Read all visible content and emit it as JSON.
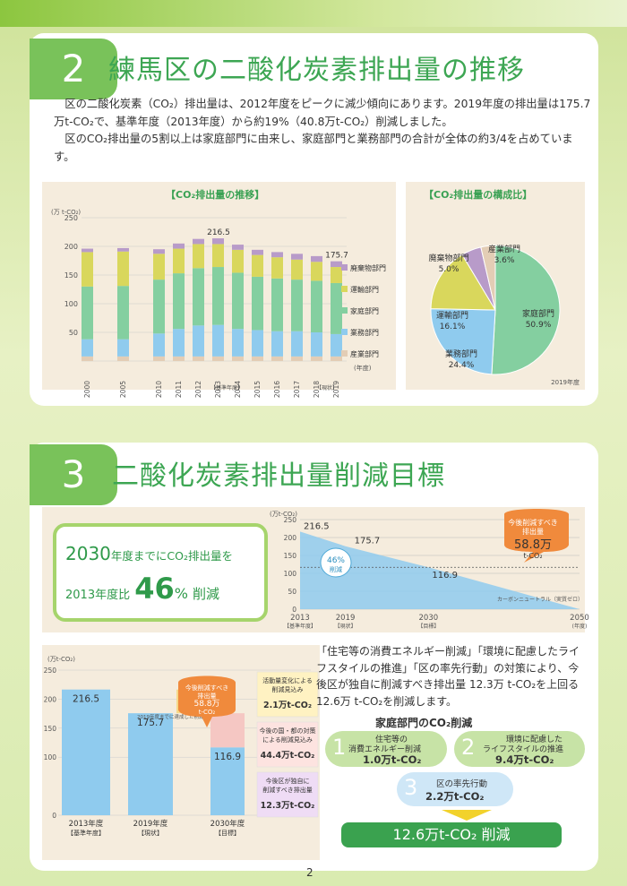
{
  "sec2": {
    "number": "2",
    "title": "練馬区の二酸化炭素排出量の推移",
    "para1": "区の二酸化炭素（CO₂）排出量は、2012年度をピークに減少傾向にあります。2019年度の排出量は175.7万t-CO₂で、基準年度（2013年度）から約19%（40.8万t-CO₂）削減しました。",
    "para2": "区のCO₂排出量の5割以上は家庭部門に由来し、家庭部門と業務部門の合計が全体の約3/4を占めています。",
    "bar_title": "【CO₂排出量の推移】",
    "pie_title": "【CO₂排出量の構成比】",
    "unit": "(万 t-CO₂)",
    "year_label": "(年度)",
    "base_note": "【基準年度】",
    "current_note": "【現状】",
    "pie_year": "2019年度"
  },
  "sec3": {
    "number": "3",
    "title": "二酸化炭素排出量削減目標",
    "goal_line1_num": "2030",
    "goal_line1_text": "年度までにCO₂排出量を",
    "goal_line2_pre": "2013年度比",
    "goal_line2_num": "46",
    "goal_line2_pct": "%",
    "goal_line2_post": "削減",
    "trend_unit": "(万t-CO₂)",
    "trend_yaxis": [
      "250",
      "200",
      "150",
      "100",
      "50",
      "0"
    ],
    "trend_x": [
      "2013",
      "2019",
      "2030",
      "2050"
    ],
    "trend_x_sub": [
      "【基準年度】",
      "【現状】",
      "【目標】",
      "(年度)"
    ],
    "trend_vals": [
      "216.5",
      "175.7",
      "116.9"
    ],
    "trend_pct": "46%",
    "trend_pct_label": "削減",
    "bubble_l1": "今後削減すべき",
    "bubble_l2": "排出量",
    "bubble_val": "58.8万",
    "bubble_unit": "t-CO₂",
    "cn_label": "カーボンニュートラル（実質ゼロ）",
    "desc": "「住宅等の消費エネルギー削減」「環境に配慮したライフスタイルの推進」「区の率先行動」の対策により、今後区が独自に削減すべき排出量 12.3万 t-CO₂を上回る 12.6万 t-CO₂を削減します。",
    "house_title": "家庭部門のCO₂削減",
    "item1_no": "1",
    "item1_l1": "住宅等の",
    "item1_l2": "消費エネルギー削減",
    "item1_val": "1.0万t-CO₂",
    "item2_no": "2",
    "item2_l1": "環境に配慮した",
    "item2_l2": "ライフスタイルの推進",
    "item2_val": "9.4万t-CO₂",
    "item3_no": "3",
    "item3_l1": "区の率先行動",
    "item3_val": "2.2万t-CO₂",
    "total": "12.6万t-CO₂ 削減",
    "b_unit": "(万t-CO₂)",
    "b_y": [
      "250",
      "200",
      "150",
      "100",
      "0"
    ],
    "b_bars": [
      {
        "label": "2013年度",
        "sub": "【基準年度】",
        "val": "216.5"
      },
      {
        "label": "2019年度",
        "sub": "【現状】",
        "val": "175.7"
      },
      {
        "label": "2030年度",
        "sub": "【目標】",
        "val": "116.9"
      }
    ],
    "b_note": "2019年度までに達成した削減量",
    "b_bubble": [
      "今後削減すべき",
      "排出量",
      "58.8万",
      "t-CO₂"
    ],
    "r1_l1": "活動量変化による",
    "r1_l2": "削減見込み",
    "r1_val": "2.1万t-CO₂",
    "r2_l1": "今後の国・都の対策",
    "r2_l2": "による削減見込み",
    "r2_val": "44.4万t-CO₂",
    "r3_l1": "今後区が独自に",
    "r3_l2": "削減すべき排出量",
    "r3_val": "12.3万t-CO₂"
  },
  "page_number": "2",
  "chart_data": [
    {
      "type": "bar",
      "title": "【CO₂排出量の推移】",
      "ylabel": "(万 t-CO₂)",
      "ylim": [
        0,
        250
      ],
      "categories": [
        "2000",
        "2005",
        "2010",
        "2011",
        "2012",
        "2013",
        "2014",
        "2015",
        "2016",
        "2017",
        "2018",
        "2019"
      ],
      "series": [
        {
          "name": "産業部門",
          "values": [
            8,
            8,
            8,
            8,
            8,
            8,
            8,
            8,
            8,
            8,
            8,
            8
          ]
        },
        {
          "name": "業務部門",
          "values": [
            30,
            30,
            40,
            48,
            54,
            55,
            48,
            46,
            44,
            44,
            42,
            39
          ]
        },
        {
          "name": "家庭部門",
          "values": [
            92,
            93,
            94,
            97,
            100,
            101,
            98,
            93,
            92,
            90,
            90,
            89
          ]
        },
        {
          "name": "運輸部門",
          "values": [
            60,
            60,
            45,
            43,
            42,
            40,
            40,
            38,
            37,
            35,
            33,
            28
          ]
        },
        {
          "name": "廃棄物部門",
          "values": [
            6,
            6,
            8,
            9,
            9,
            10,
            9,
            9,
            9,
            10,
            10,
            10
          ]
        }
      ],
      "annotations": [
        {
          "x": "2013",
          "text": "216.5"
        },
        {
          "x": "2019",
          "text": "175.7"
        }
      ]
    },
    {
      "type": "pie",
      "title": "【CO₂排出量の構成比】",
      "labels": [
        "家庭部門",
        "業務部門",
        "運輸部門",
        "廃棄物部門",
        "産業部門"
      ],
      "values": [
        50.9,
        24.4,
        16.1,
        5.0,
        3.6
      ]
    },
    {
      "type": "line",
      "x": [
        "2013",
        "2019",
        "2030",
        "2050"
      ],
      "values": [
        216.5,
        175.7,
        116.9,
        0
      ],
      "ylim": [
        0,
        250
      ]
    },
    {
      "type": "bar",
      "categories": [
        "2013年度",
        "2019年度",
        "2030年度"
      ],
      "values": [
        216.5,
        175.7,
        116.9
      ],
      "ylim": [
        0,
        250
      ]
    }
  ],
  "colors": {
    "green": "#3da653",
    "badge": "#79c25a",
    "orange": "#f08a3c",
    "sky": "#8fcbee",
    "mint": "#84cfa0",
    "yellow": "#d9d75c",
    "violet": "#b89bc9",
    "tan": "#e3cdb5"
  }
}
